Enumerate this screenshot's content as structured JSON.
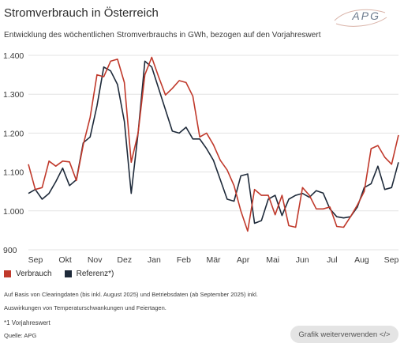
{
  "header": {
    "title": "Stromverbrauch in Österreich",
    "subtitle": "Entwicklung des wöchentlichen Stromverbrauchs in GWh, bezogen auf den Vorjahreswert",
    "logo_text": "APG"
  },
  "legend": {
    "items": [
      {
        "label": "Verbrauch",
        "color": "#c0392b"
      },
      {
        "label": "Referenz*)",
        "color": "#1e2a3a"
      }
    ]
  },
  "notes": {
    "line1": "Auf Basis von Clearingdaten (bis inkl. August 2025) und Betriebsdaten (ab September 2025) inkl.",
    "line2": "Auswirkungen von Temperaturschwankungen und Feiertagen.",
    "footnote": "*1 Vorjahreswert",
    "source": "Quelle: APG"
  },
  "actions": {
    "reuse_label": "Grafik weiterverwenden </>"
  },
  "chart_data": {
    "type": "line",
    "x_labels": [
      "Sep",
      "Okt",
      "Nov",
      "Dez",
      "Jan",
      "Feb",
      "Mär",
      "Apr",
      "Mai",
      "Jun",
      "Jul",
      "Aug",
      "Sep"
    ],
    "ylim": [
      900,
      1400
    ],
    "y_ticks": [
      "900",
      "1.000",
      "1.100",
      "1.200",
      "1.300",
      "1.400"
    ],
    "y_tick_values": [
      900,
      1000,
      1100,
      1200,
      1300,
      1400
    ],
    "grid": true,
    "series": [
      {
        "name": "Verbrauch",
        "color": "#c0392b",
        "values": [
          1120,
          1055,
          1060,
          1128,
          1115,
          1128,
          1126,
          1078,
          1170,
          1240,
          1350,
          1345,
          1385,
          1390,
          1330,
          1125,
          1200,
          1350,
          1395,
          1345,
          1298,
          1315,
          1335,
          1330,
          1295,
          1190,
          1200,
          1170,
          1130,
          1105,
          1065,
          1000,
          948,
          1055,
          1040,
          1040,
          990,
          1040,
          962,
          958,
          1060,
          1040,
          1005,
          1005,
          1010,
          960,
          958,
          985,
          1015,
          1050,
          1160,
          1168,
          1138,
          1120,
          1195
        ]
      },
      {
        "name": "Referenz*)",
        "color": "#1e2a3a",
        "values": [
          1045,
          1055,
          1030,
          1045,
          1075,
          1110,
          1065,
          1080,
          1175,
          1190,
          1270,
          1370,
          1360,
          1325,
          1230,
          1045,
          1200,
          1385,
          1370,
          1315,
          1260,
          1205,
          1200,
          1215,
          1185,
          1185,
          1160,
          1130,
          1080,
          1030,
          1025,
          1090,
          1095,
          968,
          975,
          1030,
          1040,
          988,
          1030,
          1040,
          1045,
          1035,
          1052,
          1046,
          1005,
          985,
          982,
          985,
          1010,
          1060,
          1070,
          1115,
          1055,
          1060,
          1125
        ]
      }
    ]
  }
}
